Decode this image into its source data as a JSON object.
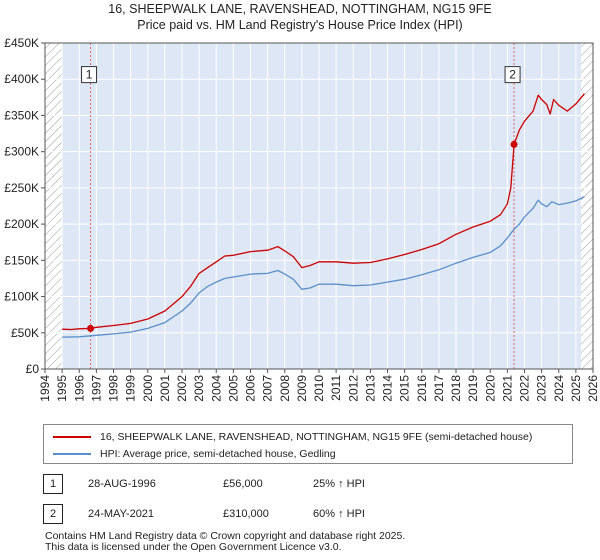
{
  "title_line1": "16, SHEEPWALK LANE, RAVENSHEAD, NOTTINGHAM, NG15 9FE",
  "title_line2": "Price paid vs. HM Land Registry's House Price Index (HPI)",
  "chart_data": {
    "type": "line",
    "title": "16, SHEEPWALK LANE, RAVENSHEAD, NOTTINGHAM, NG15 9FE — Price paid vs. HM Land Registry's House Price Index (HPI)",
    "xlim": [
      1994,
      2026
    ],
    "ylim": [
      0,
      450000
    ],
    "x_ticks": [
      1994,
      1995,
      1996,
      1997,
      1998,
      1999,
      2000,
      2001,
      2002,
      2003,
      2004,
      2005,
      2006,
      2007,
      2008,
      2009,
      2010,
      2011,
      2012,
      2013,
      2014,
      2015,
      2016,
      2017,
      2018,
      2019,
      2020,
      2021,
      2022,
      2023,
      2024,
      2025,
      2026
    ],
    "y_ticks": [
      0,
      50000,
      100000,
      150000,
      200000,
      250000,
      300000,
      350000,
      400000,
      450000
    ],
    "y_tick_labels": [
      "£0",
      "£50K",
      "£100K",
      "£150K",
      "£200K",
      "£250K",
      "£300K",
      "£350K",
      "£400K",
      "£450K"
    ],
    "colors": {
      "property": "#cc0000",
      "hpi": "#5b8fc9",
      "shade": "#dde7f5",
      "grid": "#ffffff",
      "vline": "#e06666",
      "hatch": "#999999"
    },
    "shaded_region": [
      1995,
      2025.3
    ],
    "series": [
      {
        "name": "16, SHEEPWALK LANE, RAVENSHEAD, NOTTINGHAM, NG15 9FE (semi-detached house)",
        "color": "#cc0000",
        "points": [
          [
            1995,
            55000
          ],
          [
            1995.5,
            54500
          ],
          [
            1996,
            55500
          ],
          [
            1996.66,
            56000
          ],
          [
            1997,
            57500
          ],
          [
            1998,
            60000
          ],
          [
            1999,
            63000
          ],
          [
            2000,
            69000
          ],
          [
            2001,
            80000
          ],
          [
            2002,
            100000
          ],
          [
            2002.5,
            114000
          ],
          [
            2003,
            132000
          ],
          [
            2003.5,
            140000
          ],
          [
            2004,
            148000
          ],
          [
            2004.5,
            156000
          ],
          [
            2005,
            157000
          ],
          [
            2006,
            162000
          ],
          [
            2007,
            164000
          ],
          [
            2007.6,
            169000
          ],
          [
            2008,
            163000
          ],
          [
            2008.5,
            155000
          ],
          [
            2009,
            140000
          ],
          [
            2009.5,
            143000
          ],
          [
            2010,
            148000
          ],
          [
            2011,
            148000
          ],
          [
            2012,
            146000
          ],
          [
            2013,
            147000
          ],
          [
            2014,
            152000
          ],
          [
            2015,
            158000
          ],
          [
            2016,
            165000
          ],
          [
            2017,
            173000
          ],
          [
            2018,
            186000
          ],
          [
            2019,
            196000
          ],
          [
            2020,
            204000
          ],
          [
            2020.6,
            213000
          ],
          [
            2021,
            228000
          ],
          [
            2021.2,
            250000
          ],
          [
            2021.39,
            310000
          ],
          [
            2021.7,
            330000
          ],
          [
            2022,
            342000
          ],
          [
            2022.5,
            356000
          ],
          [
            2022.8,
            378000
          ],
          [
            2023,
            372000
          ],
          [
            2023.3,
            365000
          ],
          [
            2023.5,
            352000
          ],
          [
            2023.7,
            372000
          ],
          [
            2024,
            364000
          ],
          [
            2024.5,
            356000
          ],
          [
            2025,
            366000
          ],
          [
            2025.5,
            380000
          ]
        ]
      },
      {
        "name": "HPI: Average price, semi-detached house, Gedling",
        "color": "#5b8fc9",
        "points": [
          [
            1995,
            44000
          ],
          [
            1996,
            44500
          ],
          [
            1997,
            46500
          ],
          [
            1998,
            48500
          ],
          [
            1999,
            51000
          ],
          [
            2000,
            56000
          ],
          [
            2001,
            64000
          ],
          [
            2002,
            80000
          ],
          [
            2002.5,
            91000
          ],
          [
            2003,
            105000
          ],
          [
            2003.5,
            114000
          ],
          [
            2004,
            120000
          ],
          [
            2004.5,
            125000
          ],
          [
            2005,
            127000
          ],
          [
            2006,
            131000
          ],
          [
            2007,
            132000
          ],
          [
            2007.6,
            136000
          ],
          [
            2008,
            131000
          ],
          [
            2008.5,
            124000
          ],
          [
            2009,
            110000
          ],
          [
            2009.5,
            112000
          ],
          [
            2010,
            117000
          ],
          [
            2011,
            117000
          ],
          [
            2012,
            115000
          ],
          [
            2013,
            116000
          ],
          [
            2014,
            120000
          ],
          [
            2015,
            124000
          ],
          [
            2016,
            130000
          ],
          [
            2017,
            137000
          ],
          [
            2018,
            146000
          ],
          [
            2019,
            154000
          ],
          [
            2020,
            161000
          ],
          [
            2020.6,
            170000
          ],
          [
            2021,
            181000
          ],
          [
            2021.39,
            193000
          ],
          [
            2021.7,
            200000
          ],
          [
            2022,
            210000
          ],
          [
            2022.5,
            222000
          ],
          [
            2022.8,
            233000
          ],
          [
            2023,
            228000
          ],
          [
            2023.3,
            224000
          ],
          [
            2023.6,
            231000
          ],
          [
            2024,
            227000
          ],
          [
            2024.5,
            229000
          ],
          [
            2025,
            232000
          ],
          [
            2025.5,
            238000
          ]
        ]
      }
    ],
    "sales": [
      {
        "label": "1",
        "x": 1996.66,
        "price": 56000
      },
      {
        "label": "2",
        "x": 2021.39,
        "price": 310000
      }
    ]
  },
  "legend": {
    "property_label": "16, SHEEPWALK LANE, RAVENSHEAD, NOTTINGHAM, NG15 9FE (semi-detached house)",
    "hpi_label": "HPI: Average price, semi-detached house, Gedling"
  },
  "annotations": [
    {
      "num": "1",
      "date": "28-AUG-1996",
      "price": "£56,000",
      "hpi": "25% ↑ HPI"
    },
    {
      "num": "2",
      "date": "24-MAY-2021",
      "price": "£310,000",
      "hpi": "60% ↑ HPI"
    }
  ],
  "footer": {
    "line1": "Contains HM Land Registry data © Crown copyright and database right 2025.",
    "line2": "This data is licensed under the Open Government Licence v3.0."
  }
}
